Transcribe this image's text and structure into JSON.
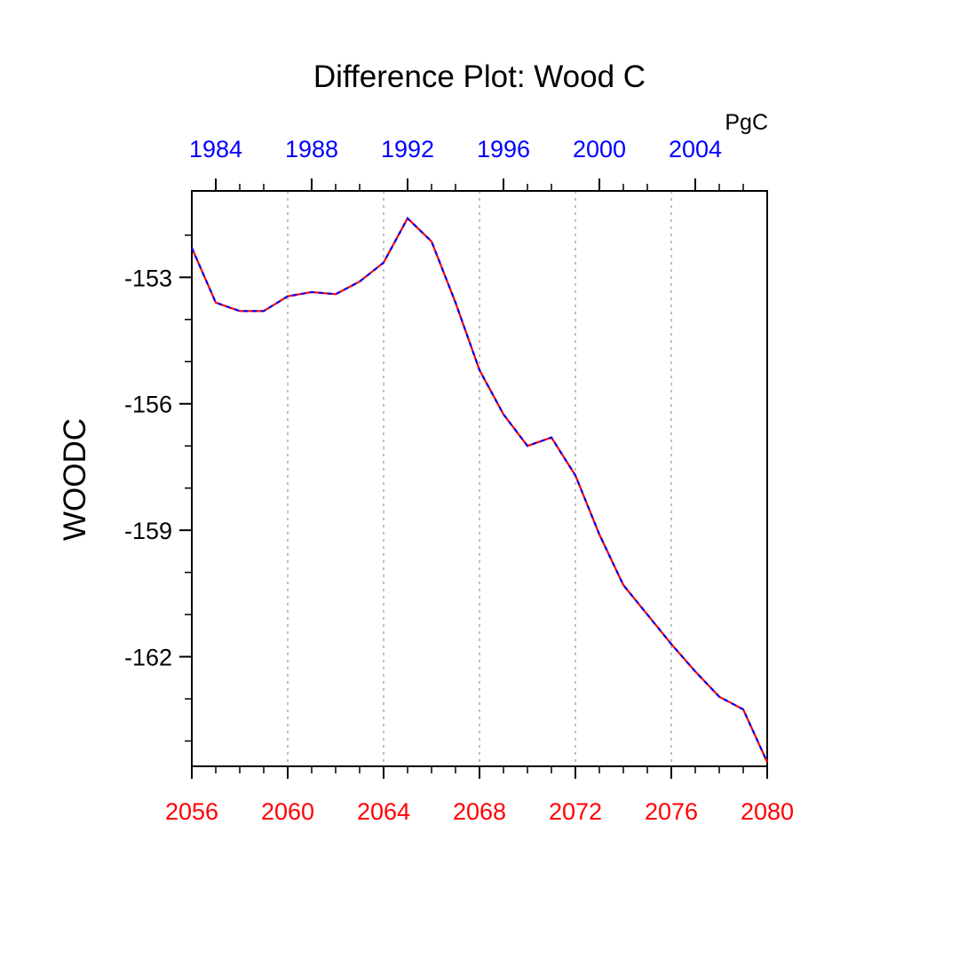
{
  "chart_data": {
    "type": "line",
    "title": "Difference Plot: Wood C",
    "ylabel": "WOODC",
    "units_label": "PgC",
    "xlim": [
      2056,
      2080
    ],
    "ylim": [
      -164.6,
      -150.95
    ],
    "x_ticks": [
      "2056",
      "2060",
      "2064",
      "2068",
      "2072",
      "2076",
      "2080"
    ],
    "y_ticks": [
      "-153",
      "-156",
      "-159",
      "-162"
    ],
    "top_axis": {
      "tick_years": [
        2057,
        2061,
        2065,
        2069,
        2073,
        2077
      ],
      "tick_labels": [
        "1984",
        "1988",
        "1992",
        "1996",
        "2000",
        "2004"
      ]
    },
    "grid": "vertical dotted",
    "colors": {
      "bottom_axis": "#ff0000",
      "top_axis": "#0000ff",
      "series_dash_a": "#ff0000",
      "series_dash_b": "#0000ff",
      "grid": "#aaaaaa",
      "axes": "#000000"
    },
    "series": [
      {
        "x": [
          2056,
          2057,
          2058,
          2059,
          2060,
          2061,
          2062,
          2063,
          2064,
          2065,
          2066,
          2067,
          2068,
          2069,
          2070,
          2071,
          2072,
          2073,
          2074,
          2075,
          2076,
          2077,
          2078,
          2079,
          2080
        ],
        "values": [
          -152.3,
          -153.6,
          -153.8,
          -153.8,
          -153.45,
          -153.35,
          -153.4,
          -153.1,
          -152.65,
          -151.6,
          -152.15,
          -153.6,
          -155.2,
          -156.25,
          -157.0,
          -156.8,
          -157.7,
          -159.1,
          -160.3,
          -161.0,
          -161.7,
          -162.35,
          -162.95,
          -163.25,
          -164.5
        ]
      }
    ]
  }
}
